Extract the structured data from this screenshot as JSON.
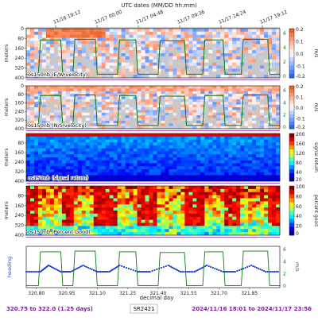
{
  "top_axis_title": "UTC dates (MM/DD hh:mm)",
  "top_ticks": [
    "11/16 19:12",
    "11/17 00:00",
    "11/17 04:48",
    "11/17 09:36",
    "11/17 14:24",
    "11/17 19:12"
  ],
  "ylabel_depth": "meters",
  "xlabel": "decimal day",
  "footer": {
    "left": "320.75 to 322.0 (1.25 days)",
    "center": "SR2421",
    "right": "2024/11/16 18:01 to 2024/11/17 23:56"
  },
  "colors": {
    "accent_purple": "#7a1fa2",
    "heading_blue": "#1f3fd1",
    "speed_green": "#0a7a0a"
  },
  "chart_data": [
    {
      "type": "heatmap",
      "panel_label": "os150nb (E/W velocity)",
      "colorbar_label": "m/s",
      "right_axis_label": "m/s",
      "clim": [
        -0.2,
        0.2
      ],
      "colorbar_ticks": [
        "0.2",
        "0.1",
        "0.0",
        "-0.1",
        "-0.2"
      ],
      "right_ticks": [
        "6",
        "4",
        "2",
        "0"
      ],
      "y_ticks": [
        "0",
        "80",
        "160",
        "240",
        "320",
        "400"
      ],
      "ylim": [
        400,
        0
      ],
      "colormap": "diverging red-blue",
      "overlay": "ship speed (green)"
    },
    {
      "type": "heatmap",
      "panel_label": "os150nb (N/S velocity)",
      "colorbar_label": "m/s",
      "right_axis_label": "m/s",
      "clim": [
        -0.2,
        0.2
      ],
      "colorbar_ticks": [
        "0.2",
        "0.1",
        "0.0",
        "-0.1",
        "-0.2"
      ],
      "right_ticks": [
        "6",
        "4",
        "2",
        "0"
      ],
      "y_ticks": [
        "0",
        "80",
        "160",
        "240",
        "320",
        "400"
      ],
      "ylim": [
        400,
        0
      ],
      "colormap": "diverging red-blue",
      "overlay": "ship speed (green)"
    },
    {
      "type": "heatmap",
      "panel_label": "os150nb (signal return)",
      "colorbar_label": "signal return",
      "clim": [
        20,
        200
      ],
      "colorbar_ticks": [
        "200",
        "160",
        "120",
        "80",
        "40",
        "20"
      ],
      "y_ticks": [
        "80",
        "160",
        "240",
        "320",
        "400"
      ],
      "ylim": [
        400,
        0
      ],
      "colormap": "jet"
    },
    {
      "type": "heatmap",
      "panel_label": "os150nb (Percent Good)",
      "colorbar_label": "percent good",
      "clim": [
        0,
        100
      ],
      "colorbar_ticks": [
        "100",
        "80",
        "60",
        "40",
        "20",
        "0"
      ],
      "y_ticks": [
        "80",
        "160",
        "240",
        "320",
        "400"
      ],
      "ylim": [
        400,
        0
      ],
      "colormap": "jet"
    },
    {
      "type": "line",
      "left_label": "heading",
      "right_label": "m/s",
      "right_ticks": [
        "6",
        "4",
        "2",
        "0"
      ],
      "x_ticks": [
        "320.80",
        "320.95",
        "321.10",
        "321.25",
        "321.40",
        "321.55",
        "321.70",
        "321.85"
      ],
      "xlim": [
        320.75,
        322.0
      ],
      "series": [
        {
          "name": "heading",
          "color": "#1f3fd1",
          "x": [
            320.75,
            320.82,
            320.86,
            320.92,
            320.97,
            321.03,
            321.1,
            321.16,
            321.21,
            321.3,
            321.36,
            321.45,
            321.51,
            321.58,
            321.64,
            321.72,
            321.78,
            321.86,
            321.93,
            322.0
          ],
          "y": [
            -100,
            -100,
            -60,
            -100,
            -100,
            -60,
            -100,
            -100,
            -60,
            -100,
            -100,
            -60,
            -100,
            -100,
            -60,
            -100,
            -100,
            -60,
            -100,
            -100
          ]
        },
        {
          "name": "ship speed",
          "color": "#0a7a0a",
          "x": [
            320.75,
            320.81,
            320.82,
            320.92,
            320.93,
            320.98,
            320.99,
            321.09,
            321.1,
            321.2,
            321.21,
            321.29,
            321.3,
            321.4,
            321.41,
            321.53,
            321.54,
            321.62,
            321.63,
            321.72,
            321.73,
            321.81,
            321.82,
            321.94,
            321.95,
            322.0
          ],
          "y": [
            0.3,
            0.3,
            5.2,
            5.2,
            0.3,
            0.3,
            5.3,
            5.3,
            0.3,
            0.3,
            5.2,
            5.2,
            0.3,
            0.3,
            5.1,
            5.1,
            0.3,
            0.3,
            5.2,
            5.2,
            0.3,
            0.3,
            5.3,
            5.3,
            0.3,
            0.3
          ]
        }
      ]
    }
  ]
}
